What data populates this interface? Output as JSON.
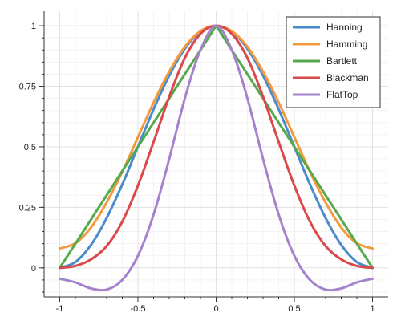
{
  "chart_data": {
    "type": "line",
    "title": "",
    "xlabel": "",
    "ylabel": "",
    "xlim": [
      -1.1,
      1.1
    ],
    "ylim": [
      -0.12,
      1.06
    ],
    "grid": true,
    "legend_position": "top-right",
    "x_ticks": [
      {
        "value": -1,
        "label": "-1"
      },
      {
        "value": -0.5,
        "label": "-0.5"
      },
      {
        "value": 0,
        "label": "0"
      },
      {
        "value": 0.5,
        "label": "0.5"
      },
      {
        "value": 1,
        "label": "1"
      }
    ],
    "y_ticks": [
      {
        "value": 0,
        "label": "0"
      },
      {
        "value": 0.25,
        "label": "0.25"
      },
      {
        "value": 0.5,
        "label": "0.5"
      },
      {
        "value": 0.75,
        "label": "0.75"
      },
      {
        "value": 1,
        "label": "1"
      }
    ],
    "x": [
      -1,
      -0.9,
      -0.8,
      -0.7,
      -0.6,
      -0.5,
      -0.4,
      -0.3,
      -0.2,
      -0.1,
      0,
      0.1,
      0.2,
      0.3,
      0.4,
      0.5,
      0.6,
      0.7,
      0.8,
      0.9,
      1
    ],
    "series": [
      {
        "name": "Hanning",
        "color": "#4a8ccb",
        "values": [
          0,
          0.024,
          0.095,
          0.206,
          0.345,
          0.5,
          0.655,
          0.794,
          0.905,
          0.976,
          1,
          0.976,
          0.905,
          0.794,
          0.655,
          0.5,
          0.345,
          0.206,
          0.095,
          0.024,
          0
        ]
      },
      {
        "name": "Hamming",
        "color": "#f5993e",
        "values": [
          0.08,
          0.102,
          0.167,
          0.27,
          0.397,
          0.54,
          0.683,
          0.81,
          0.913,
          0.978,
          1,
          0.978,
          0.913,
          0.81,
          0.683,
          0.54,
          0.397,
          0.27,
          0.167,
          0.102,
          0.08
        ]
      },
      {
        "name": "Bartlett",
        "color": "#56aa4c",
        "values": [
          0,
          0.1,
          0.2,
          0.3,
          0.4,
          0.5,
          0.6,
          0.7,
          0.8,
          0.9,
          1,
          0.9,
          0.8,
          0.7,
          0.6,
          0.5,
          0.4,
          0.3,
          0.2,
          0.1,
          0
        ]
      },
      {
        "name": "Blackman",
        "color": "#d9484a",
        "values": [
          0,
          0.008,
          0.035,
          0.09,
          0.191,
          0.34,
          0.52,
          0.707,
          0.867,
          0.967,
          1,
          0.967,
          0.867,
          0.707,
          0.52,
          0.34,
          0.191,
          0.09,
          0.035,
          0.008,
          0
        ]
      },
      {
        "name": "FlatTop",
        "color": "#a483cc",
        "values": [
          -0.045,
          -0.06,
          -0.085,
          -0.09,
          -0.05,
          0.05,
          0.22,
          0.45,
          0.7,
          0.9,
          1,
          0.9,
          0.7,
          0.45,
          0.22,
          0.05,
          -0.05,
          -0.09,
          -0.085,
          -0.06,
          -0.045
        ]
      }
    ]
  }
}
